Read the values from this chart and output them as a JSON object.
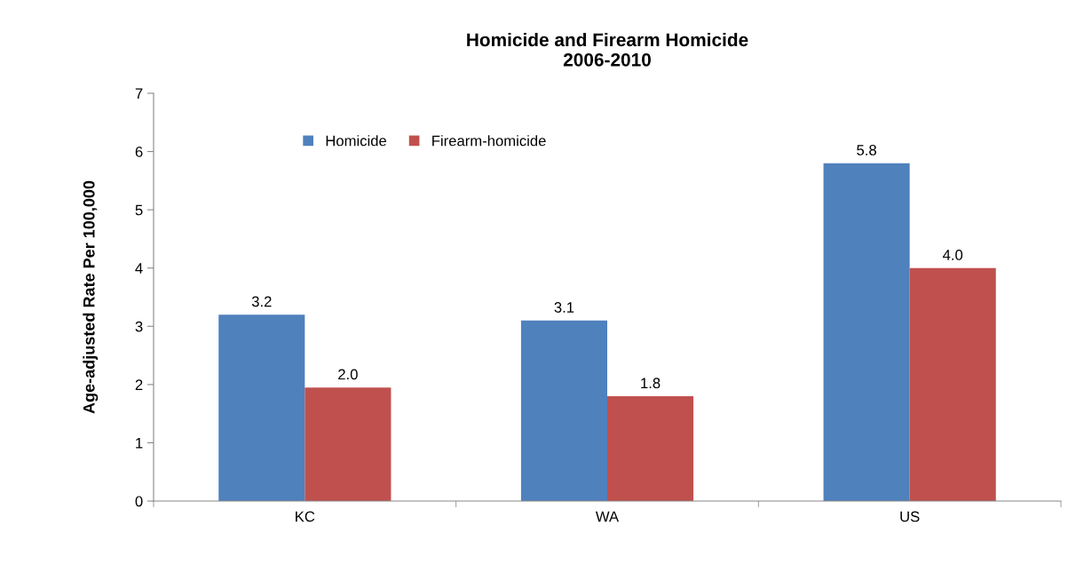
{
  "chart_data": {
    "type": "bar",
    "title": "Homicide and Firearm Homicide\n2006-2010",
    "ylabel": "Age-adjusted Rate Per 100,000",
    "categories": [
      "KC",
      "WA",
      "US"
    ],
    "series": [
      {
        "name": "Homicide",
        "color": "#4f81bd",
        "values": [
          3.2,
          3.1,
          5.8
        ],
        "value_labels": [
          "3.2",
          "3.1",
          "5.8"
        ]
      },
      {
        "name": "Firearm-homicide",
        "color": "#c0504d",
        "values": [
          1.95,
          1.8,
          4.0
        ],
        "value_labels": [
          "2.0",
          "1.8",
          "4.0"
        ]
      }
    ],
    "ylim": [
      0,
      7
    ],
    "yticks": [
      0,
      1,
      2,
      3,
      4,
      5,
      6,
      7
    ],
    "grid": false,
    "legend": "top left"
  }
}
